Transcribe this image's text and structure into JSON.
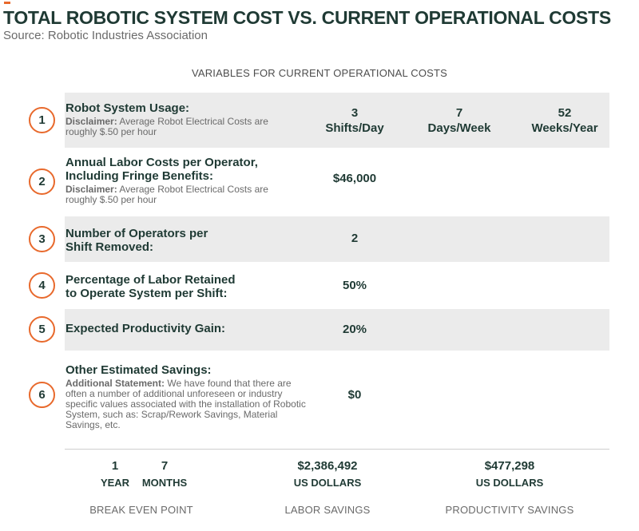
{
  "header": {
    "title": "TOTAL ROBOTIC SYSTEM COST VS. CURRENT OPERATIONAL COSTS",
    "source": "Source: Robotic Industries Association",
    "accent_color": "#e8692c"
  },
  "section_heading": "VARIABLES FOR CURRENT OPERATIONAL COSTS",
  "rows": [
    {
      "number": "1",
      "label": "Robot System Usage:",
      "note_bold": "Disclaimer:",
      "note_text": " Average Robot Electrical Costs are roughly $.50 per hour",
      "values": [
        "3\nShifts/Day",
        "7\nDays/Week",
        "52\nWeeks/Year"
      ]
    },
    {
      "number": "2",
      "label": "Annual Labor Costs per Operator,\nIncluding Fringe Benefits:",
      "note_bold": "Disclaimer:",
      "note_text": " Average Robot Electrical Costs are roughly $.50 per hour",
      "values": [
        "$46,000"
      ]
    },
    {
      "number": "3",
      "label": "Number of Operators per\nShift Removed:",
      "values": [
        "2"
      ]
    },
    {
      "number": "4",
      "label": "Percentage of Labor Retained\nto Operate System per Shift:",
      "values": [
        "50%"
      ]
    },
    {
      "number": "5",
      "label": "Expected Productivity Gain:",
      "values": [
        "20%"
      ]
    },
    {
      "number": "6",
      "label": "Other Estimated Savings:",
      "note_bold": "Additional Statement:",
      "note_text": " We have found that there are often a number of additional unforeseen or industry specific values associated with the installation of Robotic System, such as: Scrap/Rework Savings, Material Savings, etc.",
      "values": [
        "$0"
      ]
    }
  ],
  "summary": {
    "break_even": {
      "years_value": "1",
      "years_unit": "YEAR",
      "months_value": "7",
      "months_unit": "MONTHS",
      "caption": "BREAK EVEN POINT"
    },
    "labor_savings": {
      "value": "$2,386,492",
      "unit": "US DOLLARS",
      "caption": "LABOR SAVINGS"
    },
    "productivity_savings": {
      "value": "$477,298",
      "unit": "US DOLLARS",
      "caption": "PRODUCTIVITY SAVINGS"
    }
  }
}
